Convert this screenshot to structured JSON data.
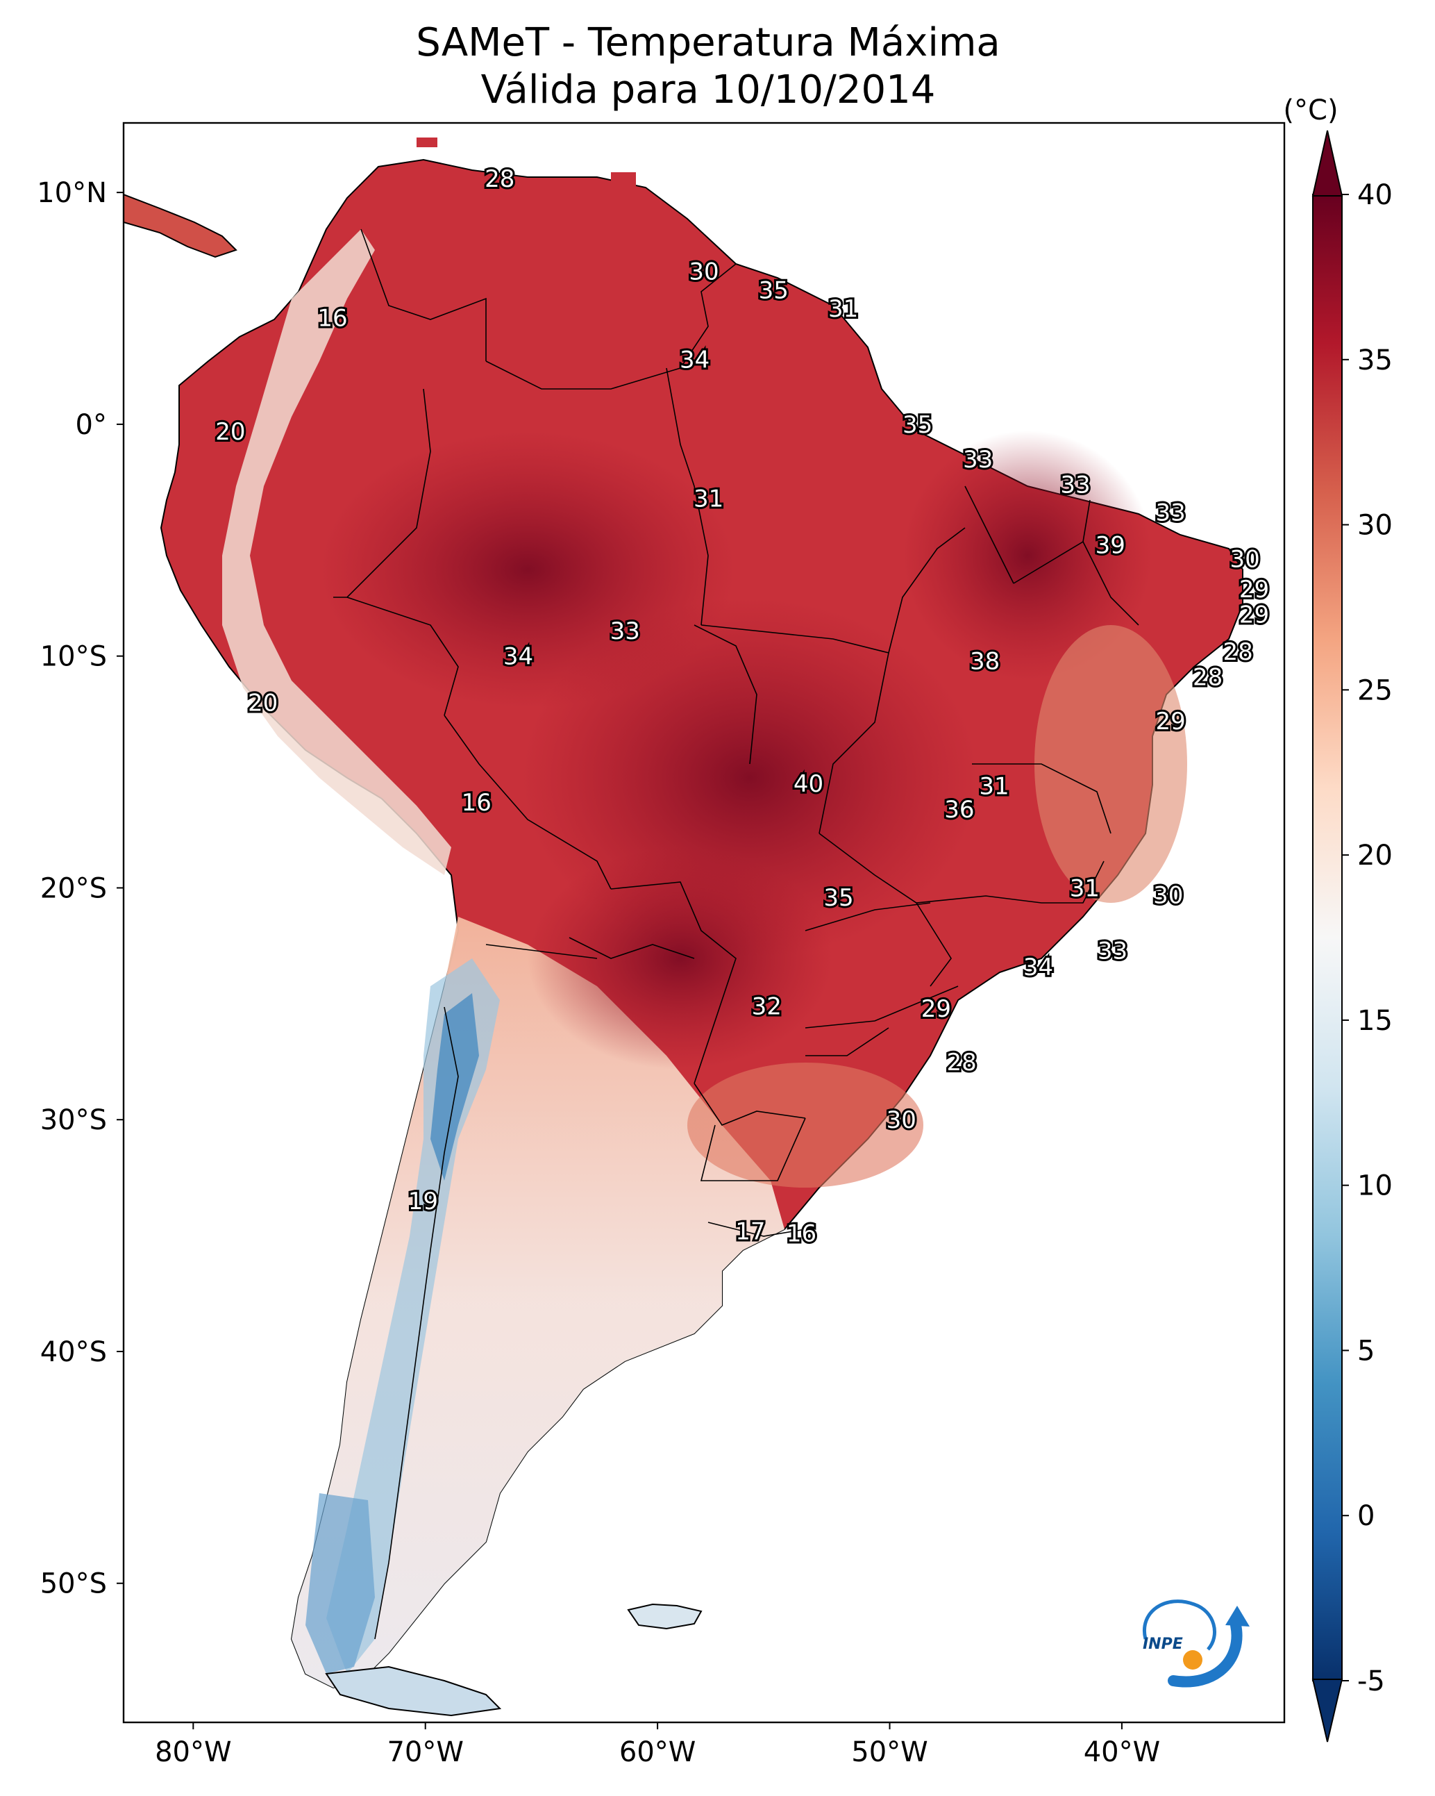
{
  "title": {
    "line1": "SAMeT - Temperatura Máxima",
    "line2": "Válida para 10/10/2014"
  },
  "colorbar": {
    "unit": "(°C)",
    "ticks": [
      "40",
      "35",
      "30",
      "25",
      "20",
      "15",
      "10",
      "5",
      "0",
      "-5"
    ],
    "tick_values": [
      40,
      35,
      30,
      25,
      20,
      15,
      10,
      5,
      0,
      -5
    ],
    "range": [
      -5,
      40
    ],
    "colors": [
      "#08306b",
      "#2166ac",
      "#4393c3",
      "#92c5de",
      "#d1e5f0",
      "#f7f7f7",
      "#fddbc7",
      "#f4a582",
      "#d6604d",
      "#b2182b",
      "#67001f"
    ]
  },
  "axes": {
    "lon_ticks": [
      "80°W",
      "70°W",
      "60°W",
      "50°W",
      "40°W"
    ],
    "lon_values": [
      -80,
      -70,
      -60,
      -50,
      -40
    ],
    "lat_ticks": [
      "10°N",
      "0°",
      "10°S",
      "20°S",
      "30°S",
      "40°S",
      "50°S"
    ],
    "lat_values": [
      10,
      0,
      -10,
      -20,
      -30,
      -40,
      -50
    ],
    "lon_range": [
      -83,
      -33
    ],
    "lat_range": [
      -56,
      13
    ]
  },
  "contour_labels": [
    {
      "text": "28",
      "lon": -66.8,
      "lat": 10.6
    },
    {
      "text": "16",
      "lon": -74.0,
      "lat": 4.6
    },
    {
      "text": "30",
      "lon": -58.0,
      "lat": 6.6
    },
    {
      "text": "35",
      "lon": -55.0,
      "lat": 5.8
    },
    {
      "text": "31",
      "lon": -52.0,
      "lat": 5.0
    },
    {
      "text": "34",
      "lon": -58.4,
      "lat": 2.8
    },
    {
      "text": "20",
      "lon": -78.4,
      "lat": -0.3
    },
    {
      "text": "35",
      "lon": -48.8,
      "lat": 0.0
    },
    {
      "text": "33",
      "lon": -46.2,
      "lat": -1.5
    },
    {
      "text": "31",
      "lon": -57.8,
      "lat": -3.2
    },
    {
      "text": "33",
      "lon": -42.0,
      "lat": -2.6
    },
    {
      "text": "33",
      "lon": -37.9,
      "lat": -3.8
    },
    {
      "text": "39",
      "lon": -40.5,
      "lat": -5.2
    },
    {
      "text": "30",
      "lon": -34.7,
      "lat": -5.8
    },
    {
      "text": "29",
      "lon": -34.3,
      "lat": -7.1
    },
    {
      "text": "29",
      "lon": -34.3,
      "lat": -8.2
    },
    {
      "text": "33",
      "lon": -61.4,
      "lat": -8.9
    },
    {
      "text": "34",
      "lon": -66.0,
      "lat": -10.0
    },
    {
      "text": "38",
      "lon": -45.9,
      "lat": -10.2
    },
    {
      "text": "28",
      "lon": -35.0,
      "lat": -9.8
    },
    {
      "text": "28",
      "lon": -36.3,
      "lat": -10.9
    },
    {
      "text": "20",
      "lon": -77.0,
      "lat": -12.0
    },
    {
      "text": "29",
      "lon": -37.9,
      "lat": -12.8
    },
    {
      "text": "40",
      "lon": -53.5,
      "lat": -15.5
    },
    {
      "text": "31",
      "lon": -45.5,
      "lat": -15.6
    },
    {
      "text": "36",
      "lon": -47.0,
      "lat": -16.6
    },
    {
      "text": "16",
      "lon": -67.8,
      "lat": -16.3
    },
    {
      "text": "31",
      "lon": -41.6,
      "lat": -20.0
    },
    {
      "text": "30",
      "lon": -38.0,
      "lat": -20.3
    },
    {
      "text": "35",
      "lon": -52.2,
      "lat": -20.4
    },
    {
      "text": "33",
      "lon": -40.4,
      "lat": -22.7
    },
    {
      "text": "34",
      "lon": -43.6,
      "lat": -23.4
    },
    {
      "text": "32",
      "lon": -55.3,
      "lat": -25.1
    },
    {
      "text": "29",
      "lon": -48.0,
      "lat": -25.2
    },
    {
      "text": "28",
      "lon": -46.9,
      "lat": -27.5
    },
    {
      "text": "30",
      "lon": -49.5,
      "lat": -30.0
    },
    {
      "text": "19",
      "lon": -70.1,
      "lat": -33.5
    },
    {
      "text": "17",
      "lon": -56.0,
      "lat": -34.8
    },
    {
      "text": "16",
      "lon": -53.8,
      "lat": -34.9
    }
  ],
  "logo": {
    "text": "INPE"
  }
}
